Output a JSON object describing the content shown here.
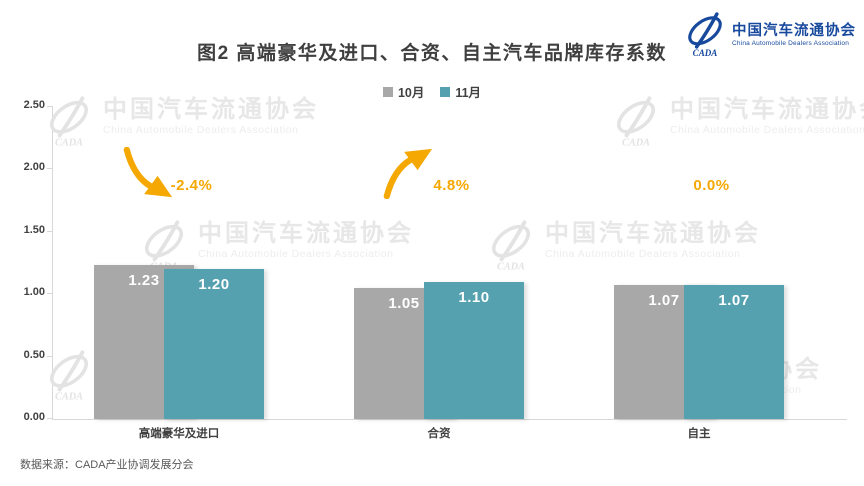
{
  "logo": {
    "cn": "中国汽车流通协会",
    "en": "China Automobile Dealers Association",
    "abbr": "CADA"
  },
  "chart_data": {
    "type": "bar",
    "title": "图2  高端豪华及进口、合资、自主汽车品牌库存系数",
    "categories": [
      "高端豪华及进口",
      "合资",
      "自主"
    ],
    "series": [
      {
        "name": "10月",
        "color": "#a8a8a8",
        "values": [
          1.23,
          1.05,
          1.07
        ]
      },
      {
        "name": "11月",
        "color": "#55a1af",
        "values": [
          1.2,
          1.1,
          1.07
        ]
      }
    ],
    "annotations": [
      {
        "category": "高端豪华及进口",
        "change": "-2.4%",
        "arrow": "down"
      },
      {
        "category": "合资",
        "change": "4.8%",
        "arrow": "up"
      },
      {
        "category": "自主",
        "change": "0.0%",
        "arrow": "none"
      }
    ],
    "y_axis": {
      "min": 0,
      "max": 2.5,
      "step": 0.5,
      "tick_labels": [
        "0.00",
        "0.50",
        "1.00",
        "1.50",
        "2.00",
        "2.50"
      ]
    },
    "legend_position": "top",
    "grid": false,
    "annotation_color": "#f5a802",
    "bar_value_format": "2dp"
  },
  "watermark": {
    "cn": "中国汽车流通协会",
    "en": "China Automobile Dealers Association",
    "abbr": "CADA"
  },
  "footer": {
    "source": "数据来源：CADA产业协调发展分会"
  }
}
